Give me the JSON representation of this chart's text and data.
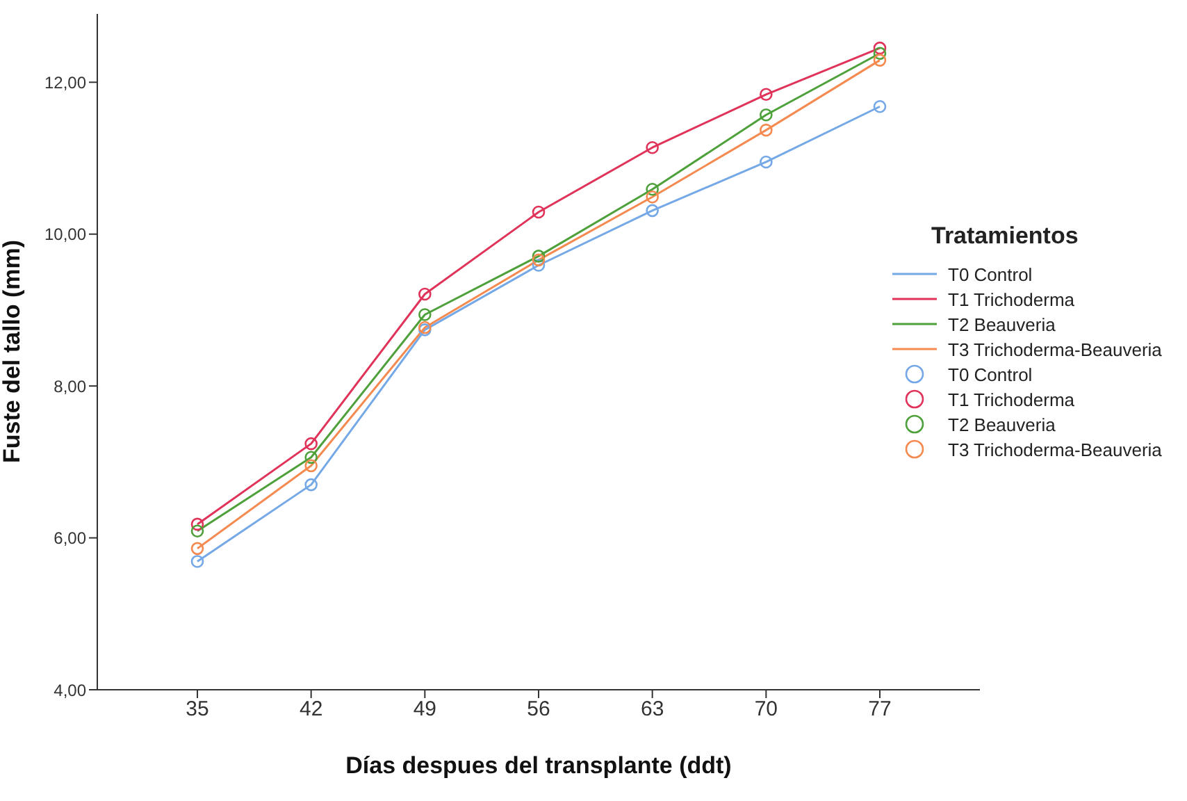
{
  "chart_data": {
    "type": "line",
    "xlabel": "Días despues del transplante (ddt)",
    "ylabel": "Fuste del tallo (mm)",
    "legend_title": "Tratamientos",
    "categories": [
      "35",
      "42",
      "49",
      "56",
      "63",
      "70",
      "77"
    ],
    "series": [
      {
        "name": "T0 Control",
        "color": "#75a8e6",
        "values": [
          5.69,
          6.7,
          8.74,
          9.59,
          10.31,
          10.95,
          11.68
        ]
      },
      {
        "name": "T1 Trichoderma",
        "color": "#e0335a",
        "values": [
          6.18,
          7.24,
          9.21,
          10.29,
          11.14,
          11.84,
          12.45
        ]
      },
      {
        "name": "T2 Beauveria",
        "color": "#4ea03a",
        "values": [
          6.09,
          7.06,
          8.94,
          9.71,
          10.59,
          11.57,
          12.38
        ]
      },
      {
        "name": "T3 Trichoderma-Beauveria",
        "color": "#f58a50",
        "values": [
          5.86,
          6.95,
          8.77,
          9.66,
          10.49,
          11.37,
          12.29
        ]
      }
    ],
    "ylim": [
      4,
      12.9
    ],
    "yticks": [
      {
        "value": 4,
        "label": "4,00"
      },
      {
        "value": 6,
        "label": "6,00"
      },
      {
        "value": 8,
        "label": "8,00"
      },
      {
        "value": 10,
        "label": "10,00"
      },
      {
        "value": 12,
        "label": "12,00"
      }
    ],
    "grid": false,
    "legend": "right",
    "marker": "circle",
    "line_style": "solid"
  }
}
